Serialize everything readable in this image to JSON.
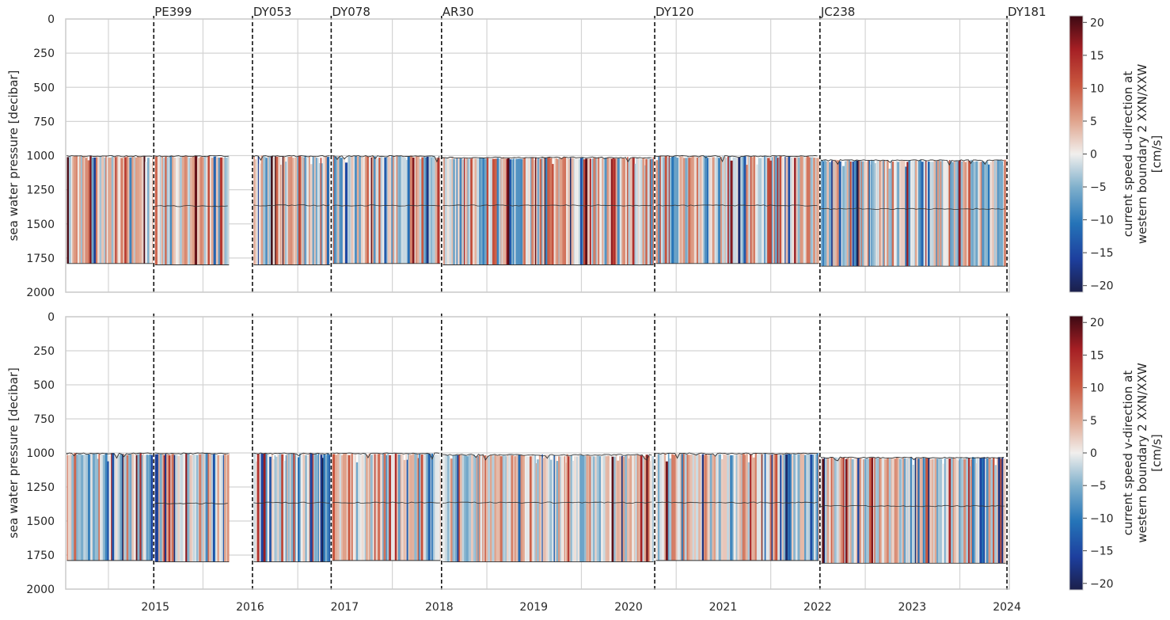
{
  "chart_data": [
    {
      "type": "heatmap",
      "subtype": "time-depth section of current-meter records",
      "ylabel": "sea water pressure [decibar]",
      "colorbar_label": "current speed u-direction at western boundary 2 XXN/XXW [cm/s]",
      "colorbar_label_lines": [
        "current speed u-direction at",
        "western boundary 2 XXN/XXW",
        "[cm/s]"
      ],
      "colorbar_range": [
        -21,
        21
      ],
      "colorbar_ticks": [
        "20",
        "15",
        "10",
        "5",
        "0",
        "−5",
        "−10",
        "−15",
        "−20"
      ],
      "y_ticks": [
        "0",
        "250",
        "500",
        "750",
        "1000",
        "1250",
        "1500",
        "1750",
        "2000"
      ],
      "ylim": [
        2000,
        0
      ],
      "inverted_y": true,
      "grid": true,
      "colormap": "diverging blue-white-red (balance)",
      "deployments": [
        {
          "start": "2014-07-20",
          "end": "2015-06-25",
          "top_decibar": 1000,
          "bottom_decibar": 1790,
          "mid_decibar": null
        },
        {
          "start": "2015-06-25",
          "end": "2016-04-15",
          "top_decibar": 1000,
          "bottom_decibar": 1800,
          "mid_decibar": 1370
        },
        {
          "start": "2016-07-10",
          "end": "2017-05-10",
          "top_decibar": 1000,
          "bottom_decibar": 1800,
          "mid_decibar": 1365
        },
        {
          "start": "2017-05-10",
          "end": "2018-07-10",
          "top_decibar": 1000,
          "bottom_decibar": 1790,
          "mid_decibar": 1365
        },
        {
          "start": "2018-07-10",
          "end": "2020-10-10",
          "top_decibar": 1010,
          "bottom_decibar": 1800,
          "mid_decibar": 1365
        },
        {
          "start": "2020-10-10",
          "end": "2022-07-10",
          "top_decibar": 1000,
          "bottom_decibar": 1790,
          "mid_decibar": 1365
        },
        {
          "start": "2022-07-10",
          "end": "2024-07-01",
          "top_decibar": 1030,
          "bottom_decibar": 1810,
          "mid_decibar": 1390
        }
      ]
    },
    {
      "type": "heatmap",
      "subtype": "time-depth section of current-meter records",
      "ylabel": "sea water pressure [decibar]",
      "colorbar_label": "current speed v-direction at western boundary 2 XXN/XXW [cm/s]",
      "colorbar_label_lines": [
        "current speed v-direction at",
        "western boundary 2 XXN/XXW",
        "[cm/s]"
      ],
      "colorbar_range": [
        -21,
        21
      ],
      "colorbar_ticks": [
        "20",
        "15",
        "10",
        "5",
        "0",
        "−5",
        "−10",
        "−15",
        "−20"
      ],
      "y_ticks": [
        "0",
        "250",
        "500",
        "750",
        "1000",
        "1250",
        "1500",
        "1750",
        "2000"
      ],
      "ylim": [
        2000,
        0
      ],
      "inverted_y": true,
      "grid": true,
      "colormap": "diverging blue-white-red (balance)",
      "deployments": [
        {
          "start": "2014-07-20",
          "end": "2015-06-25",
          "top_decibar": 1000,
          "bottom_decibar": 1790,
          "mid_decibar": null
        },
        {
          "start": "2015-06-25",
          "end": "2016-04-15",
          "top_decibar": 1000,
          "bottom_decibar": 1800,
          "mid_decibar": 1370
        },
        {
          "start": "2016-07-10",
          "end": "2017-05-10",
          "top_decibar": 1000,
          "bottom_decibar": 1800,
          "mid_decibar": 1365
        },
        {
          "start": "2017-05-10",
          "end": "2018-07-10",
          "top_decibar": 1000,
          "bottom_decibar": 1790,
          "mid_decibar": 1365
        },
        {
          "start": "2018-07-10",
          "end": "2020-10-10",
          "top_decibar": 1010,
          "bottom_decibar": 1800,
          "mid_decibar": 1365
        },
        {
          "start": "2020-10-10",
          "end": "2022-07-10",
          "top_decibar": 1000,
          "bottom_decibar": 1790,
          "mid_decibar": 1365
        },
        {
          "start": "2022-07-10",
          "end": "2024-07-01",
          "top_decibar": 1030,
          "bottom_decibar": 1810,
          "mid_decibar": 1390
        }
      ]
    }
  ],
  "shared_x": {
    "xlim": [
      "2014-07-20",
      "2024-07-10"
    ],
    "year_ticks": [
      "2015",
      "2016",
      "2017",
      "2018",
      "2019",
      "2020",
      "2021",
      "2022",
      "2023",
      "2024"
    ]
  },
  "cruises": [
    {
      "name": "PE399",
      "date": "2015-06-25"
    },
    {
      "name": "DY053",
      "date": "2016-07-10"
    },
    {
      "name": "DY078",
      "date": "2017-05-10"
    },
    {
      "name": "AR30",
      "date": "2018-07-10"
    },
    {
      "name": "DY120",
      "date": "2020-10-10"
    },
    {
      "name": "JC238",
      "date": "2022-07-10"
    },
    {
      "name": "DY181",
      "date": "2024-07-01"
    }
  ]
}
